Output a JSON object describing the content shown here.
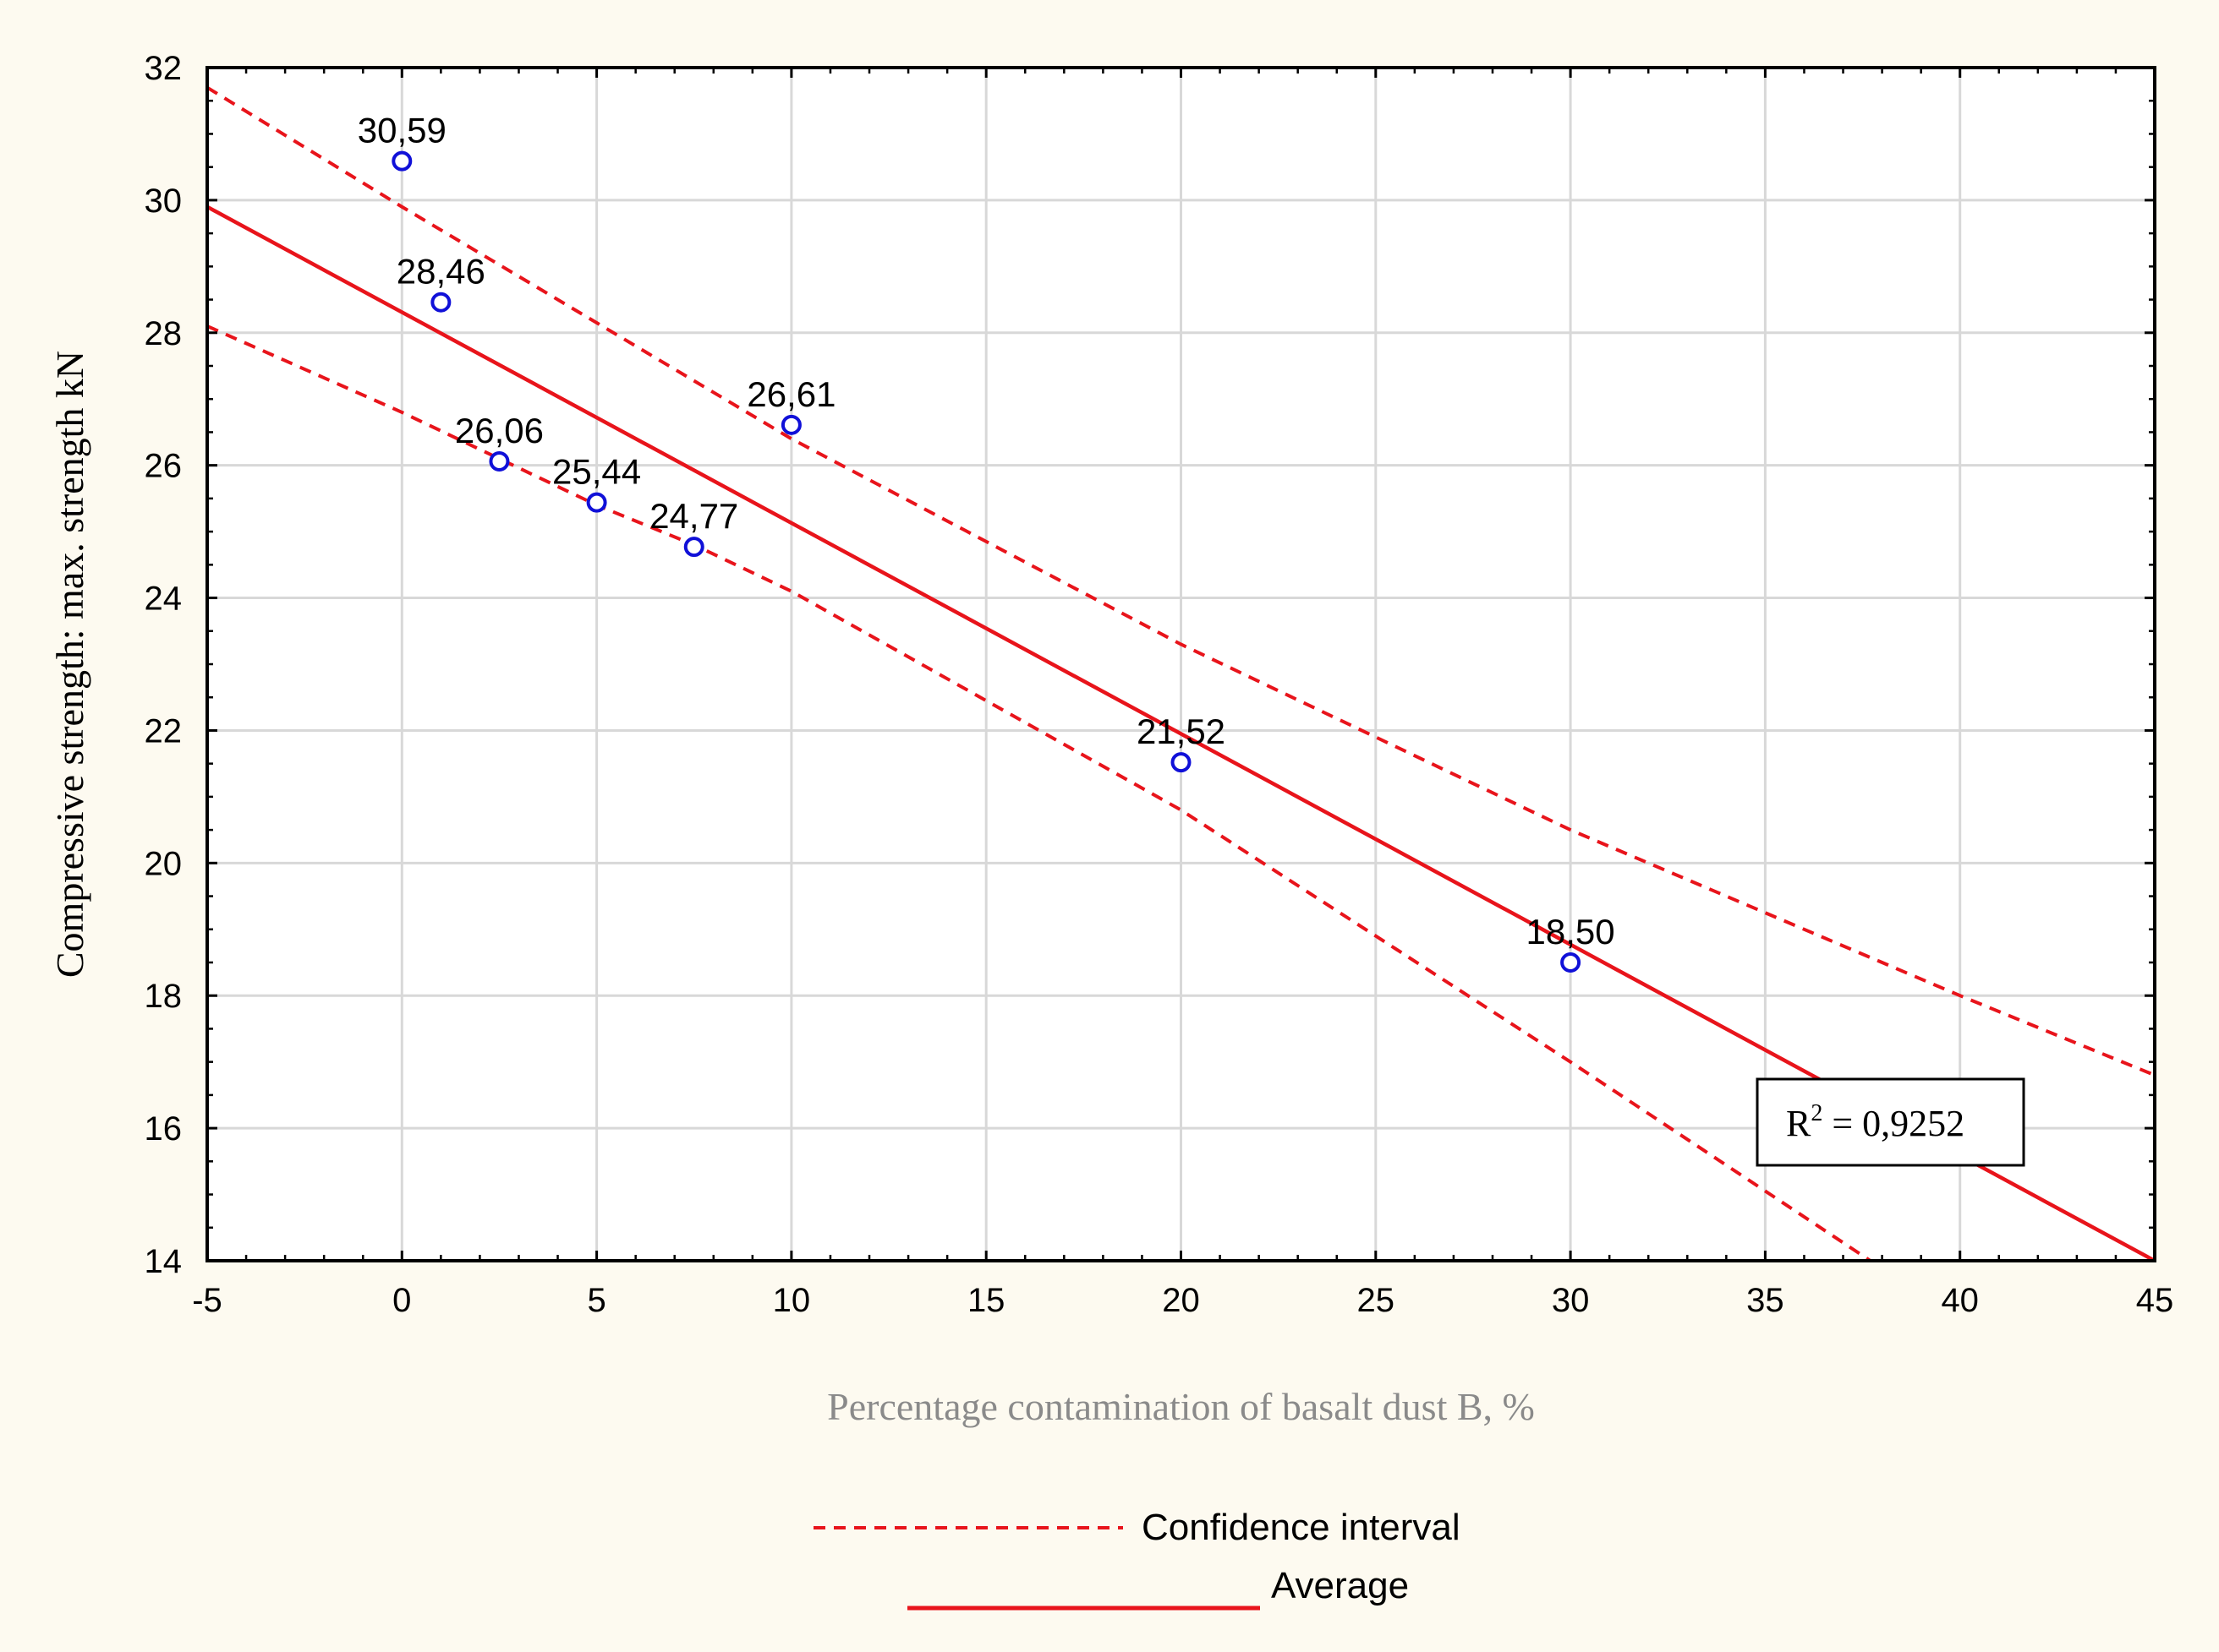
{
  "chart_data": {
    "type": "scatter",
    "xlabel": "Percentage contamination of basalt dust B, %",
    "ylabel": "Compressive strength: max. strength kN",
    "xlim": [
      -5,
      45
    ],
    "ylim": [
      14,
      32
    ],
    "xticks": [
      -5,
      0,
      5,
      10,
      15,
      20,
      25,
      30,
      35,
      40,
      45
    ],
    "yticks": [
      14,
      16,
      18,
      20,
      22,
      24,
      26,
      28,
      30,
      32
    ],
    "grid": true,
    "points": [
      {
        "x": 0,
        "y": 30.59,
        "label": "30,59"
      },
      {
        "x": 1,
        "y": 28.46,
        "label": "28,46"
      },
      {
        "x": 2.5,
        "y": 26.06,
        "label": "26,06"
      },
      {
        "x": 5,
        "y": 25.44,
        "label": "25,44"
      },
      {
        "x": 7.5,
        "y": 24.77,
        "label": "24,77"
      },
      {
        "x": 10,
        "y": 26.61,
        "label": "26,61"
      },
      {
        "x": 20,
        "y": 21.52,
        "label": "21,52"
      },
      {
        "x": 30,
        "y": 18.5,
        "label": "18,50"
      }
    ],
    "fit_line": {
      "name": "Average",
      "x": [
        -5,
        45
      ],
      "y": [
        29.9,
        14.0
      ]
    },
    "confidence_upper": {
      "x": [
        -5,
        0,
        10,
        20,
        30,
        40,
        45
      ],
      "y": [
        31.7,
        29.9,
        26.4,
        23.3,
        20.5,
        18.0,
        16.8
      ]
    },
    "confidence_lower": {
      "x": [
        -5,
        0,
        5,
        7.5,
        10,
        20,
        30,
        37.7
      ],
      "y": [
        28.1,
        26.8,
        25.4,
        24.8,
        24.1,
        20.8,
        17.0,
        14.0
      ]
    },
    "legend": {
      "position": "bottom-center",
      "entries": [
        {
          "label": "Confidence interval",
          "style": "dashed"
        },
        {
          "label": "Average",
          "style": "solid"
        }
      ]
    },
    "annotation": {
      "r2_prefix": "R",
      "r2_sup": "2",
      "r2_value": " = 0,9252"
    },
    "colors": {
      "line": "#e8141b",
      "marker": "#1010d8",
      "grid": "#d8d8d8",
      "axis": "#000000"
    }
  }
}
